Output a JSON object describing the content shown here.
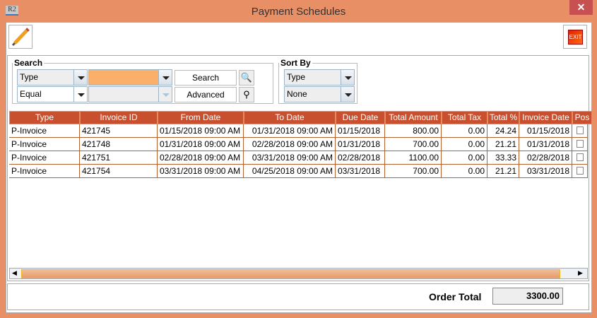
{
  "window": {
    "title": "Payment Schedules",
    "app_icon": "R2",
    "close": "✕"
  },
  "toolbar": {
    "edit_icon": "pencil-icon",
    "exit_label": "EXIT"
  },
  "search": {
    "legend": "Search",
    "field": "Type",
    "operator": "Equal",
    "value": "",
    "search_label": "Search",
    "advanced_label": "Advanced"
  },
  "sort": {
    "legend": "Sort By",
    "primary": "Type",
    "secondary": "None"
  },
  "table": {
    "columns": [
      "Type",
      "Invoice ID",
      "From Date",
      "To Date",
      "Due Date",
      "Total Amount",
      "Total Tax",
      "Total %",
      "Invoice Date",
      "Pos"
    ],
    "rows": [
      [
        "P-Invoice",
        "421745",
        "01/15/2018 09:00 AM",
        "01/31/2018 09:00 AM",
        "01/15/2018",
        "800.00",
        "0.00",
        "24.24",
        "01/15/2018",
        false
      ],
      [
        "P-Invoice",
        "421748",
        "01/31/2018 09:00 AM",
        "02/28/2018 09:00 AM",
        "01/31/2018",
        "700.00",
        "0.00",
        "21.21",
        "01/31/2018",
        false
      ],
      [
        "P-Invoice",
        "421751",
        "02/28/2018 09:00 AM",
        "03/31/2018 09:00 AM",
        "02/28/2018",
        "1100.00",
        "0.00",
        "33.33",
        "02/28/2018",
        false
      ],
      [
        "P-Invoice",
        "421754",
        "03/31/2018 09:00 AM",
        "04/25/2018 09:00 AM",
        "03/31/2018",
        "700.00",
        "0.00",
        "21.21",
        "03/31/2018",
        false
      ]
    ]
  },
  "footer": {
    "order_total_label": "Order Total",
    "order_total": "3300.00"
  },
  "colors": {
    "accent": "#e98f66",
    "header": "#c8502e",
    "highlight": "#fbb06a"
  }
}
